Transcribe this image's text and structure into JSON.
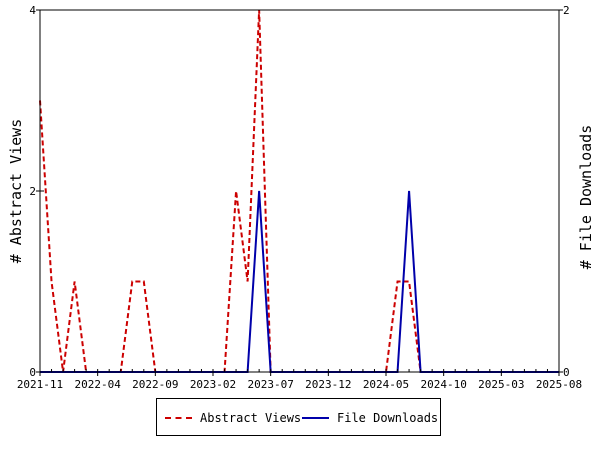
{
  "chart_data": {
    "type": "line",
    "x_tick_labels": [
      "2021-11",
      "2022-04",
      "2022-09",
      "2023-02",
      "2023-07",
      "2023-12",
      "2024-05",
      "2024-10",
      "2025-03",
      "2025-08"
    ],
    "x": [
      "2021-11",
      "2021-12",
      "2022-01",
      "2022-02",
      "2022-03",
      "2022-04",
      "2022-05",
      "2022-06",
      "2022-07",
      "2022-08",
      "2022-09",
      "2022-10",
      "2022-11",
      "2022-12",
      "2023-01",
      "2023-02",
      "2023-03",
      "2023-04",
      "2023-05",
      "2023-06",
      "2023-07",
      "2023-08",
      "2023-09",
      "2023-10",
      "2023-11",
      "2023-12",
      "2024-01",
      "2024-02",
      "2024-03",
      "2024-04",
      "2024-05",
      "2024-06",
      "2024-07",
      "2024-08",
      "2024-09",
      "2024-10",
      "2024-11",
      "2024-12",
      "2025-01",
      "2025-02",
      "2025-03",
      "2025-04",
      "2025-05",
      "2025-06",
      "2025-07",
      "2025-08"
    ],
    "series": [
      {
        "name": "Abstract Views",
        "axis": "left",
        "color": "#cc0000",
        "style": "dashed",
        "values": [
          3,
          1,
          0,
          1,
          0,
          0,
          0,
          0,
          1,
          1,
          0,
          0,
          0,
          0,
          0,
          0,
          0,
          2,
          1,
          4,
          0,
          0,
          0,
          0,
          0,
          0,
          0,
          0,
          0,
          0,
          0,
          1,
          1,
          0,
          0,
          0,
          0,
          0,
          0,
          0,
          0,
          0,
          0,
          0,
          0,
          0
        ]
      },
      {
        "name": "File Downloads",
        "axis": "right",
        "color": "#0000aa",
        "style": "solid",
        "values": [
          0,
          0,
          0,
          0,
          0,
          0,
          0,
          0,
          0,
          0,
          0,
          0,
          0,
          0,
          0,
          0,
          0,
          0,
          0,
          1,
          0,
          0,
          0,
          0,
          0,
          0,
          0,
          0,
          0,
          0,
          0,
          0,
          1,
          0,
          0,
          0,
          0,
          0,
          0,
          0,
          0,
          0,
          0,
          0,
          0,
          0
        ]
      }
    ],
    "y_left": {
      "label": "# Abstract Views",
      "range": [
        0,
        4
      ],
      "ticks": [
        "0",
        "2",
        "4"
      ]
    },
    "y_right": {
      "label": "# File Downloads",
      "range": [
        0,
        2
      ],
      "ticks": [
        "0",
        "2"
      ]
    },
    "grid": false,
    "legend_position": "bottom"
  },
  "legend": {
    "abstract_views": "Abstract Views",
    "file_downloads": "File Downloads"
  }
}
